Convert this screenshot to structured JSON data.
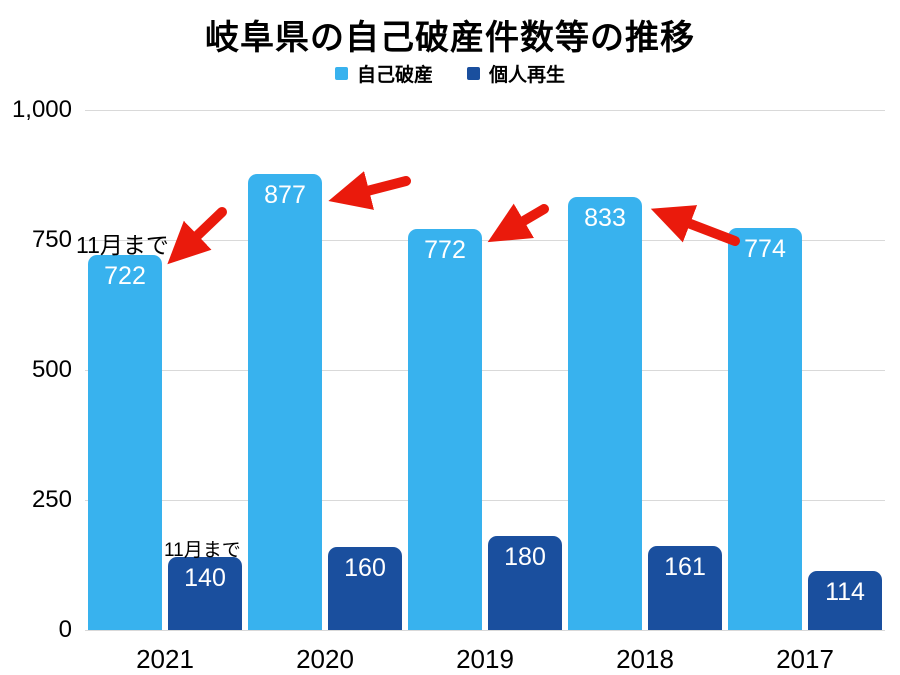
{
  "chart_data": {
    "type": "bar",
    "title": "岐阜県の自己破産件数等の推移",
    "categories": [
      "2021",
      "2020",
      "2019",
      "2018",
      "2017"
    ],
    "series": [
      {
        "name": "自己破産",
        "color": "#38b2ee",
        "values": [
          722,
          877,
          772,
          833,
          774
        ]
      },
      {
        "name": "個人再生",
        "color": "#1a4f9e",
        "values": [
          140,
          160,
          180,
          161,
          114
        ]
      }
    ],
    "ylim": [
      0,
      1000
    ],
    "yticks": [
      {
        "value": 0,
        "label": "0"
      },
      {
        "value": 250,
        "label": "250"
      },
      {
        "value": 500,
        "label": "500"
      },
      {
        "value": 750,
        "label": "750"
      },
      {
        "value": 1000,
        "label": "1,000"
      }
    ],
    "grid": true,
    "gridline_color": "#d9d9d9",
    "legend_position": "top",
    "arrow_color": "#ea1a0c",
    "annotations": [
      {
        "text": "11月まで",
        "target": "2021 自己破産 (722)"
      },
      {
        "text": "11月まで",
        "target": "2021 個人再生 (140)"
      }
    ],
    "arrows": [
      {
        "points_to": "2021 自己破産 722"
      },
      {
        "points_to": "2020 自己破産 877"
      },
      {
        "points_to": "2019 自己破産 772"
      },
      {
        "points_to": "2018 自己破産 833"
      }
    ]
  }
}
